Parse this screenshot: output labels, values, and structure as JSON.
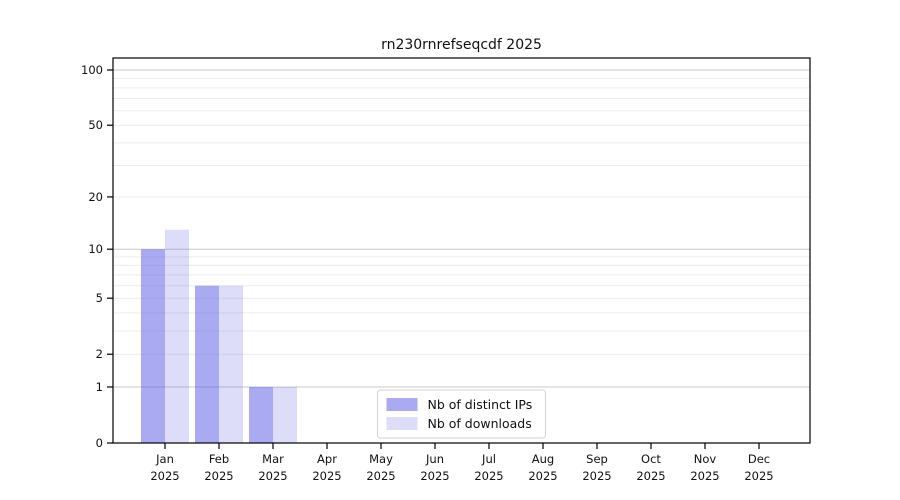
{
  "chart_data": {
    "type": "bar",
    "title": "rn230rnrefseqcdf 2025",
    "x_axis": {
      "categories": [
        "Jan",
        "Feb",
        "Mar",
        "Apr",
        "May",
        "Jun",
        "Jul",
        "Aug",
        "Sep",
        "Oct",
        "Nov",
        "Dec"
      ],
      "year": "2025"
    },
    "y_axis": {
      "scale": "log1p",
      "ticks": [
        0,
        1,
        2,
        5,
        10,
        20,
        50,
        100
      ],
      "ylim": [
        0,
        100
      ]
    },
    "series": [
      {
        "name": "Nb of distinct IPs",
        "fill": "rgba(85,85,230,0.5)",
        "approx_hex": "#aaaaf5",
        "values": [
          10,
          6,
          1,
          0,
          0,
          0,
          0,
          0,
          0,
          0,
          0,
          0
        ]
      },
      {
        "name": "Nb of downloads",
        "fill": "rgba(85,85,230,0.2)",
        "approx_hex": "#dadaf8",
        "values": [
          13,
          6,
          1,
          0,
          0,
          0,
          0,
          0,
          0,
          0,
          0,
          0
        ]
      }
    ],
    "grid": "horizontal",
    "legend_position": "inside-bottom-center",
    "colors": {
      "grid_major": "#c9c9c9",
      "grid_minor": "#ececec",
      "axis": "#000000",
      "legend_border": "#d2d2d2",
      "legend_bg": "#ffffff"
    }
  }
}
